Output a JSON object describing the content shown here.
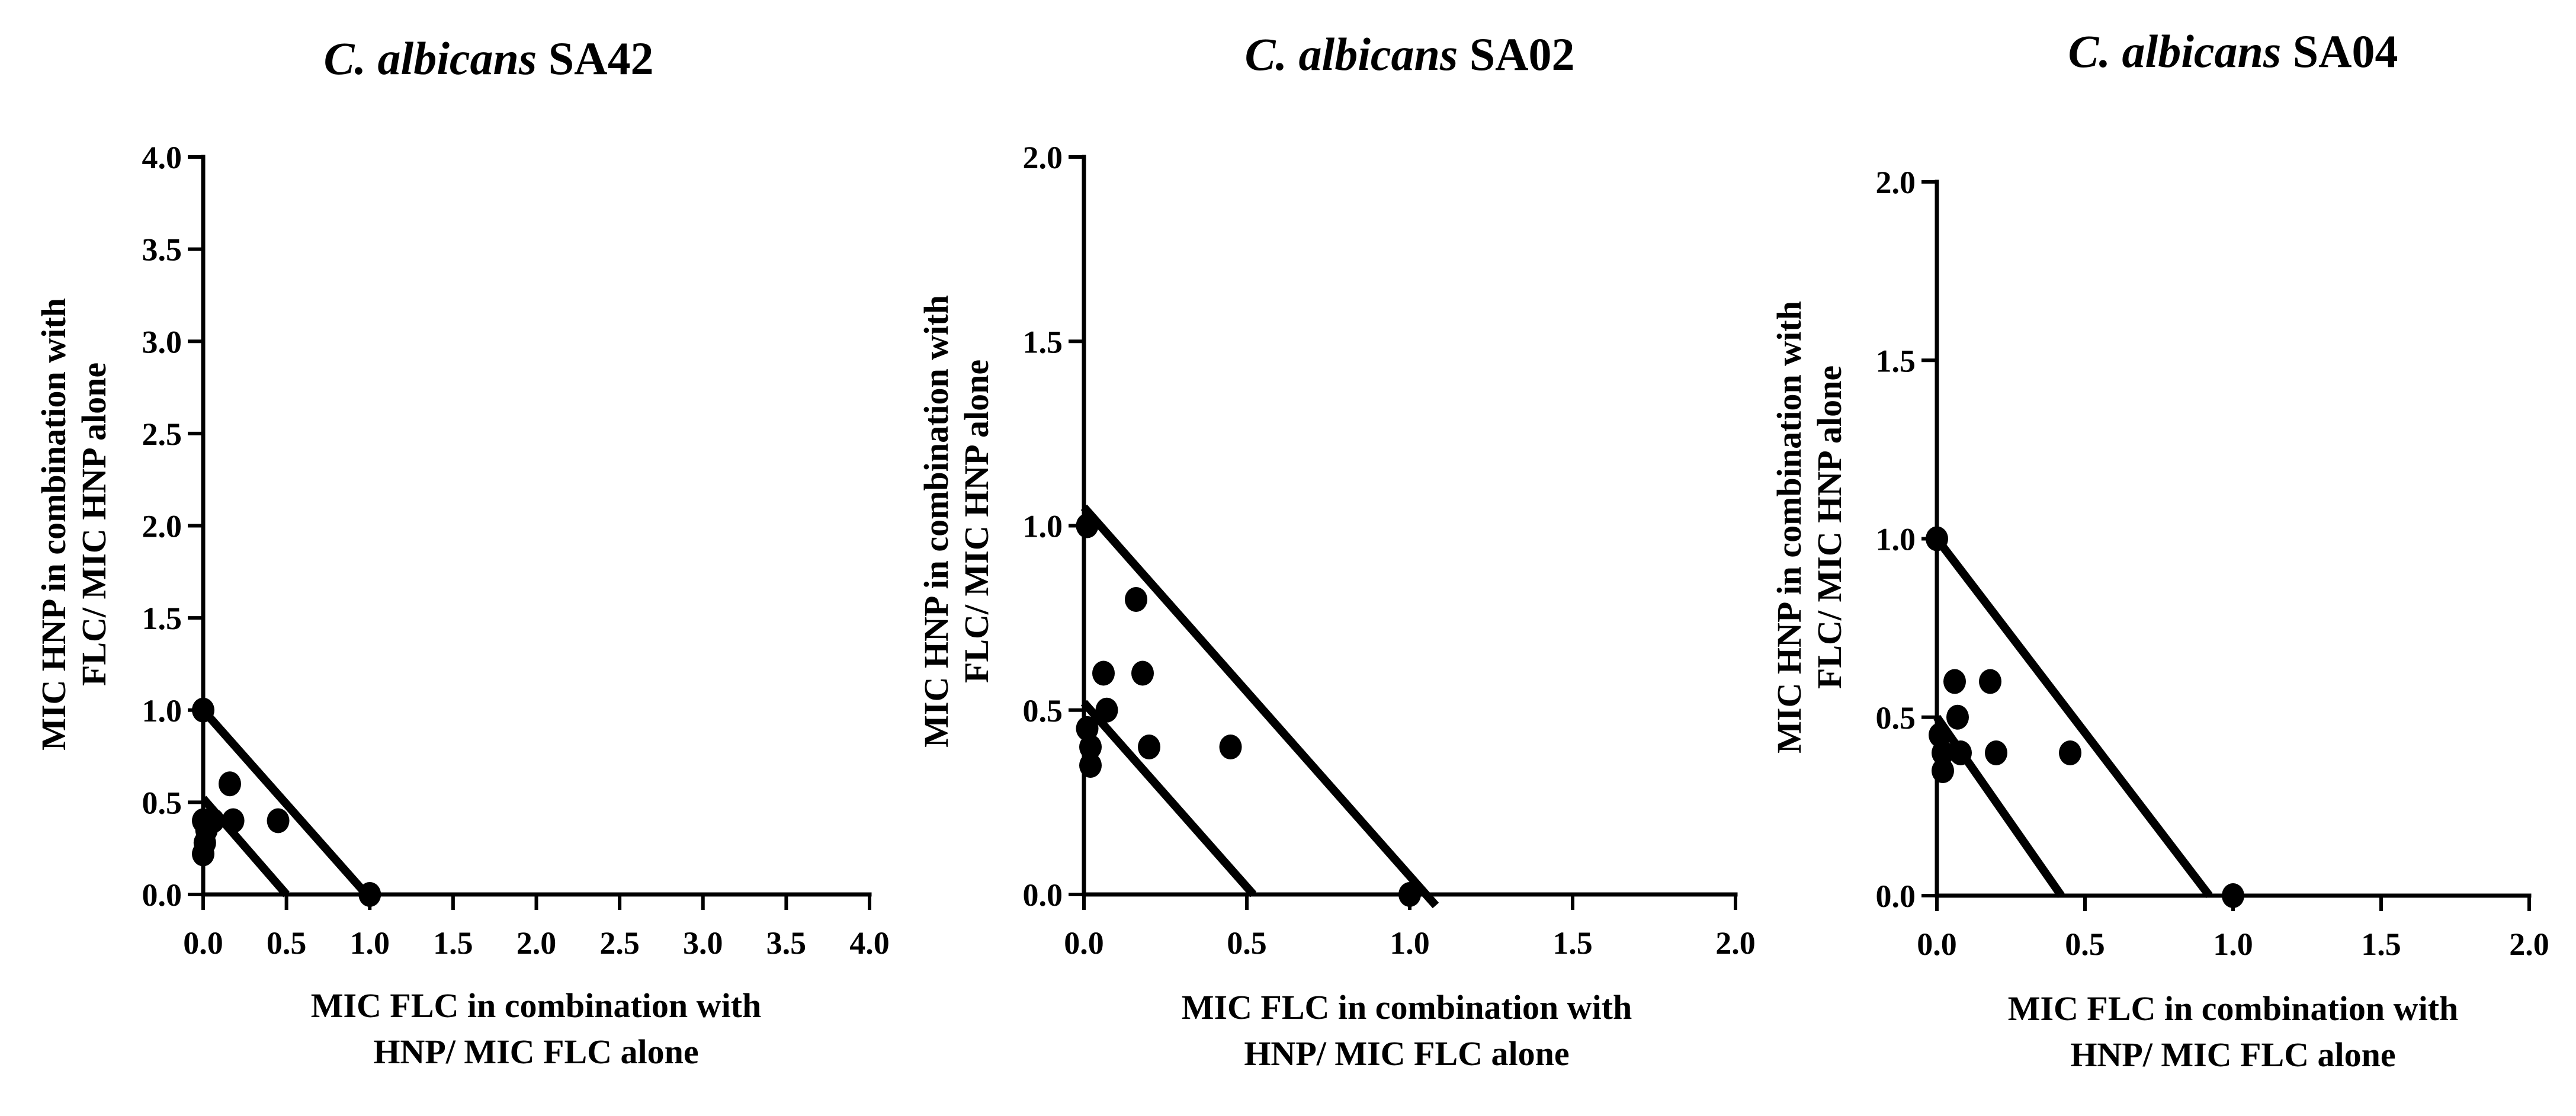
{
  "colors": {
    "ink": "#000000",
    "background": "#ffffff"
  },
  "chart_data": [
    {
      "type": "scatter",
      "title": {
        "italic": "C. albicans",
        "plain": " SA42"
      },
      "xlabel": [
        "MIC FLC in combination with",
        "HNP/ MIC FLC alone"
      ],
      "ylabel": [
        "MIC HNP in combination with",
        "FLC/ MIC HNP alone"
      ],
      "xlim": [
        0,
        4
      ],
      "ylim": [
        0,
        4
      ],
      "xticks": [
        "0.0",
        "0.5",
        "1.0",
        "1.5",
        "2.0",
        "2.5",
        "3.0",
        "3.5",
        "4.0"
      ],
      "yticks": [
        "0.0",
        "0.5",
        "1.0",
        "1.5",
        "2.0",
        "2.5",
        "3.0",
        "3.5",
        "4.0"
      ],
      "lines": [
        {
          "x1": 0,
          "y1": 1.0,
          "x2": 0.98,
          "y2": 0
        },
        {
          "x1": 0,
          "y1": 0.52,
          "x2": 0.5,
          "y2": 0
        }
      ],
      "points": [
        {
          "x": 0,
          "y": 1.0
        },
        {
          "x": 1.0,
          "y": 0.0
        },
        {
          "x": 0.16,
          "y": 0.6
        },
        {
          "x": 0.18,
          "y": 0.4
        },
        {
          "x": 0.45,
          "y": 0.4
        },
        {
          "x": 0.06,
          "y": 0.4
        },
        {
          "x": 0.0,
          "y": 0.4
        },
        {
          "x": 0.02,
          "y": 0.35
        },
        {
          "x": 0.01,
          "y": 0.28
        },
        {
          "x": 0.0,
          "y": 0.22
        }
      ]
    },
    {
      "type": "scatter",
      "title": {
        "italic": "C. albicans",
        "plain": " SA02"
      },
      "xlabel": [
        "MIC FLC in combination with",
        "HNP/ MIC FLC alone"
      ],
      "ylabel": [
        "MIC HNP in combination with",
        "FLC/ MIC HNP alone"
      ],
      "xlim": [
        0,
        2
      ],
      "ylim": [
        0,
        2
      ],
      "xticks": [
        "0.0",
        "0.5",
        "1.0",
        "1.5",
        "2.0"
      ],
      "yticks": [
        "0.0",
        "0.5",
        "1.0",
        "1.5",
        "2.0"
      ],
      "lines": [
        {
          "x1": 0,
          "y1": 1.05,
          "x2": 1.08,
          "y2": -0.03
        },
        {
          "x1": 0,
          "y1": 0.52,
          "x2": 0.52,
          "y2": 0
        }
      ],
      "points": [
        {
          "x": 0.01,
          "y": 1.0
        },
        {
          "x": 1.0,
          "y": 0.0
        },
        {
          "x": 0.16,
          "y": 0.8
        },
        {
          "x": 0.18,
          "y": 0.6
        },
        {
          "x": 0.06,
          "y": 0.6
        },
        {
          "x": 0.07,
          "y": 0.5
        },
        {
          "x": 0.2,
          "y": 0.4
        },
        {
          "x": 0.45,
          "y": 0.4
        },
        {
          "x": 0.01,
          "y": 0.45
        },
        {
          "x": 0.02,
          "y": 0.4
        },
        {
          "x": 0.02,
          "y": 0.35
        }
      ]
    },
    {
      "type": "scatter",
      "title": {
        "italic": "C. albicans",
        "plain": " SA04"
      },
      "xlabel": [
        "MIC FLC in combination with",
        "HNP/ MIC FLC alone"
      ],
      "ylabel": [
        "MIC HNP in combination with",
        "FLC/ MIC HNP alone"
      ],
      "xlim": [
        0,
        2
      ],
      "ylim": [
        0,
        2
      ],
      "xticks": [
        "0.0",
        "0.5",
        "1.0",
        "1.5",
        "2.0"
      ],
      "yticks": [
        "0.0",
        "0.5",
        "1.0",
        "1.5",
        "2.0"
      ],
      "lines": [
        {
          "x1": 0,
          "y1": 1.0,
          "x2": 0.92,
          "y2": 0
        },
        {
          "x1": 0,
          "y1": 0.5,
          "x2": 0.42,
          "y2": 0
        }
      ],
      "points": [
        {
          "x": 0,
          "y": 1.0
        },
        {
          "x": 1.0,
          "y": 0.0
        },
        {
          "x": 0.06,
          "y": 0.6
        },
        {
          "x": 0.18,
          "y": 0.6
        },
        {
          "x": 0.07,
          "y": 0.5
        },
        {
          "x": 0.08,
          "y": 0.4
        },
        {
          "x": 0.2,
          "y": 0.4
        },
        {
          "x": 0.45,
          "y": 0.4
        },
        {
          "x": 0.01,
          "y": 0.45
        },
        {
          "x": 0.02,
          "y": 0.4
        },
        {
          "x": 0.02,
          "y": 0.35
        }
      ]
    }
  ]
}
